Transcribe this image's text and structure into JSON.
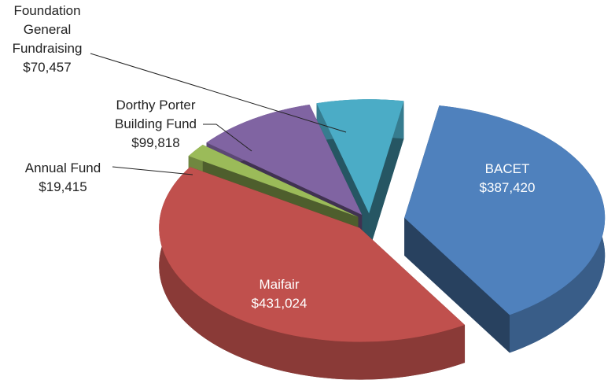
{
  "chart_data": {
    "type": "pie",
    "categories": [
      "BACET",
      "Maifair",
      "Annual Fund",
      "Dorthy Porter Building Fund",
      "Foundation General Fundraising"
    ],
    "values": [
      387420,
      431024,
      19415,
      99818,
      70457
    ],
    "value_labels": [
      "$387,420",
      "$431,024",
      "$19,415",
      "$99,818",
      "$70,457"
    ],
    "colors": [
      "#4f81bd",
      "#c0504d",
      "#9bbb59",
      "#8064a2",
      "#4bacc6"
    ]
  }
}
